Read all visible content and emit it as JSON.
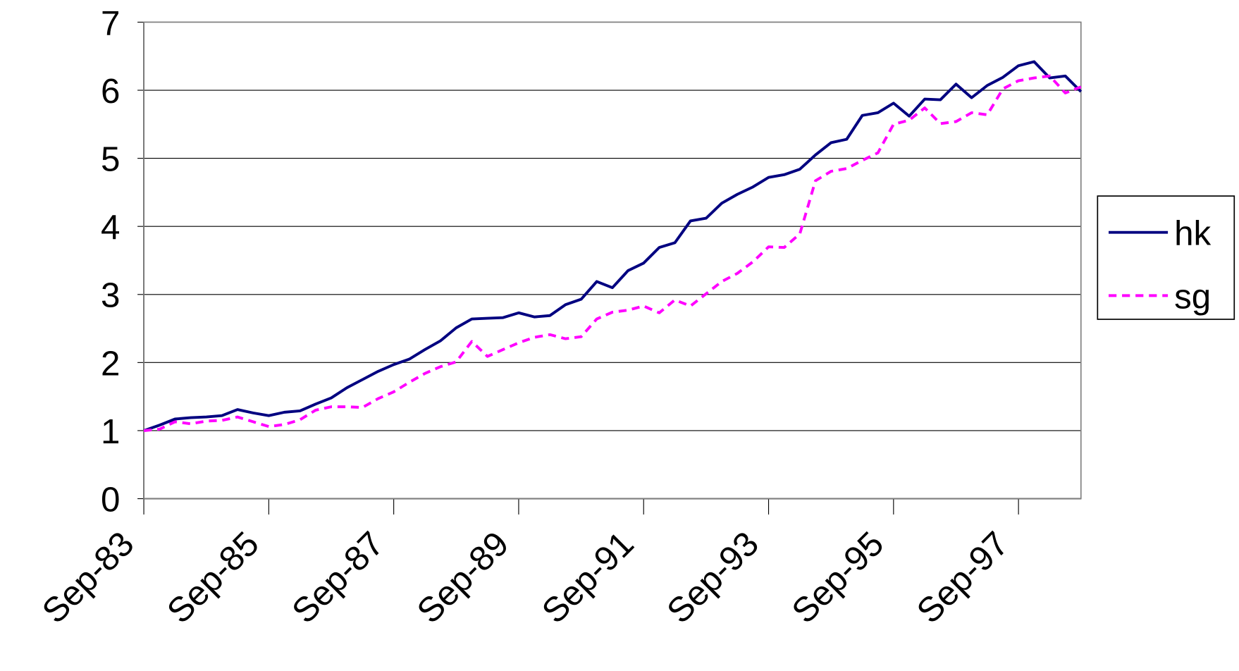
{
  "chart_data": {
    "type": "line",
    "categories": [
      "Sep-83",
      null,
      null,
      null,
      null,
      null,
      null,
      null,
      "Sep-85",
      null,
      null,
      null,
      null,
      null,
      null,
      null,
      "Sep-87",
      null,
      null,
      null,
      null,
      null,
      null,
      null,
      "Sep-89",
      null,
      null,
      null,
      null,
      null,
      null,
      null,
      "Sep-91",
      null,
      null,
      null,
      null,
      null,
      null,
      null,
      "Sep-93",
      null,
      null,
      null,
      null,
      null,
      null,
      null,
      "Sep-95",
      null,
      null,
      null,
      null,
      null,
      null,
      null,
      "Sep-97",
      null,
      null,
      null,
      null
    ],
    "series": [
      {
        "name": "hk",
        "color": "#000080",
        "dashed": false,
        "values": [
          1.0,
          1.08,
          1.17,
          1.19,
          1.2,
          1.22,
          1.31,
          1.26,
          1.22,
          1.27,
          1.29,
          1.39,
          1.48,
          1.63,
          1.75,
          1.87,
          1.97,
          2.05,
          2.19,
          2.32,
          2.51,
          2.64,
          2.65,
          2.66,
          2.73,
          2.67,
          2.69,
          2.85,
          2.93,
          3.19,
          3.1,
          3.35,
          3.46,
          3.69,
          3.76,
          4.08,
          4.12,
          4.34,
          4.47,
          4.58,
          4.72,
          4.76,
          4.84,
          5.05,
          5.23,
          5.28,
          5.63,
          5.67,
          5.81,
          5.62,
          5.87,
          5.86,
          6.09,
          5.89,
          6.07,
          6.19,
          6.36,
          6.42,
          6.18,
          6.21,
          5.98
        ]
      },
      {
        "name": "sg",
        "color": "#ff00ff",
        "dashed": true,
        "values": [
          1.0,
          1.02,
          1.13,
          1.1,
          1.14,
          1.15,
          1.2,
          1.13,
          1.06,
          1.09,
          1.16,
          1.3,
          1.35,
          1.35,
          1.34,
          1.47,
          1.57,
          1.71,
          1.84,
          1.94,
          2.01,
          2.31,
          2.09,
          2.19,
          2.29,
          2.37,
          2.41,
          2.35,
          2.38,
          2.64,
          2.74,
          2.77,
          2.83,
          2.73,
          2.92,
          2.83,
          3.01,
          3.19,
          3.31,
          3.48,
          3.7,
          3.69,
          3.89,
          4.67,
          4.81,
          4.85,
          4.97,
          5.08,
          5.5,
          5.56,
          5.74,
          5.51,
          5.54,
          5.67,
          5.64,
          6.02,
          6.14,
          6.18,
          6.21,
          5.96,
          6.05
        ]
      }
    ],
    "ylim": [
      0,
      7
    ],
    "yticks": [
      0,
      1,
      2,
      3,
      4,
      5,
      6,
      7
    ],
    "grid": true,
    "legend": "right"
  }
}
